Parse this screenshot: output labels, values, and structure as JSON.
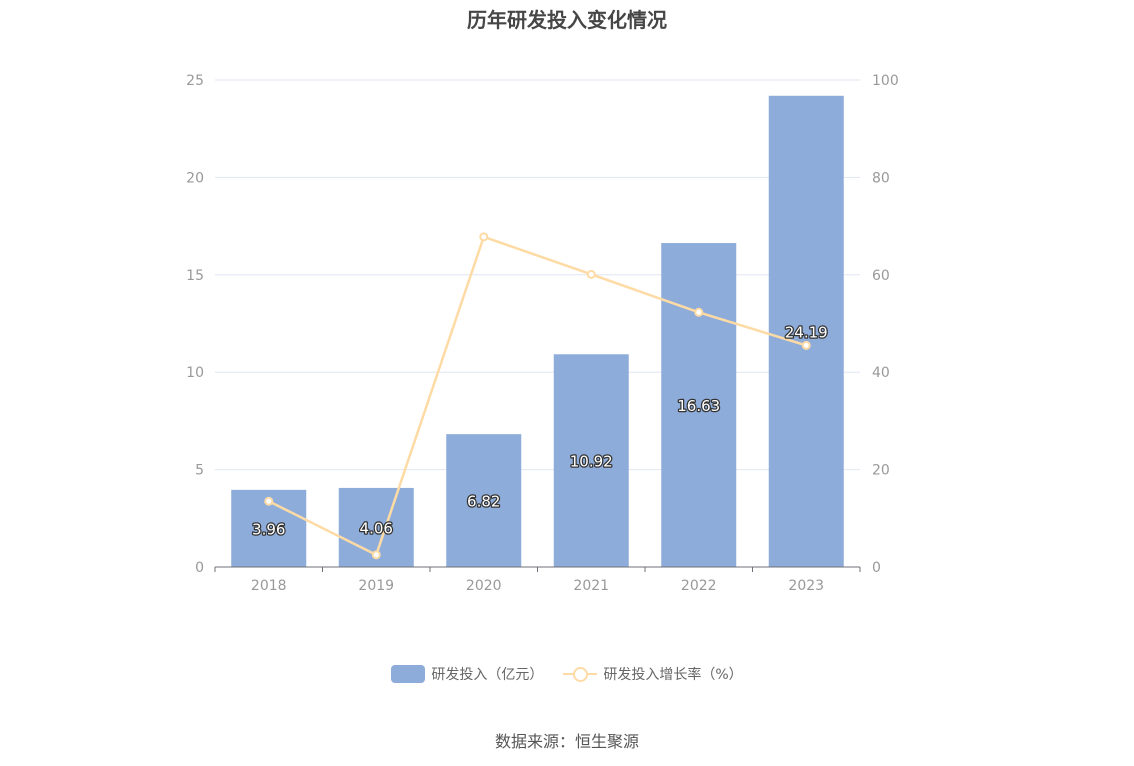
{
  "chart_data": {
    "type": "bar",
    "title": "历年研发投入变化情况",
    "categories": [
      "2018",
      "2019",
      "2020",
      "2021",
      "2022",
      "2023"
    ],
    "series": [
      {
        "name": "研发投入（亿元）",
        "type": "bar",
        "axis": "left",
        "values": [
          3.96,
          4.06,
          6.82,
          10.92,
          16.63,
          24.19
        ],
        "data_labels": [
          "3.96",
          "4.06",
          "6.82",
          "10.92",
          "16.63",
          "24.19"
        ]
      },
      {
        "name": "研发投入增长率（%）",
        "type": "line",
        "axis": "right",
        "values": [
          13.5,
          2.5,
          67.8,
          60.1,
          52.3,
          45.5
        ]
      }
    ],
    "y_left": {
      "min": 0,
      "max": 25,
      "ticks": [
        "0",
        "5",
        "10",
        "15",
        "20",
        "25"
      ]
    },
    "y_right": {
      "min": 0,
      "max": 100,
      "ticks": [
        "0",
        "20",
        "40",
        "60",
        "80",
        "100"
      ]
    },
    "grid": true,
    "legend_position": "bottom",
    "colors": {
      "bar": "#8eacd9",
      "line": "#fedba5",
      "grid": "#e0e6f1",
      "axis_text": "#999999"
    }
  },
  "source_note": "数据来源：恒生聚源"
}
